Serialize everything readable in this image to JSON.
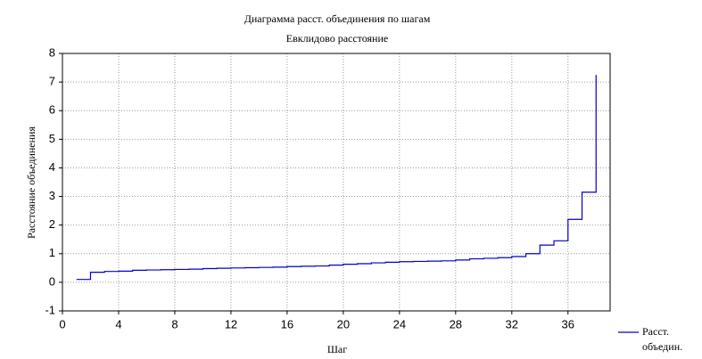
{
  "chart_data": {
    "type": "line",
    "drawstyle": "steps-post",
    "title": "Диаграмма расст. объединения по шагам",
    "subtitle": "Евклидово расстояние",
    "x_label": "Шаг",
    "y_label": "Расстояние объединения",
    "x": [
      1,
      2,
      3,
      4,
      5,
      6,
      7,
      8,
      9,
      10,
      11,
      12,
      13,
      14,
      15,
      16,
      17,
      18,
      19,
      20,
      21,
      22,
      23,
      24,
      25,
      26,
      27,
      28,
      29,
      30,
      31,
      32,
      33,
      34,
      35,
      36,
      37,
      38
    ],
    "series": [
      {
        "name": "Расст. объедин.",
        "color": "#0000cc",
        "values": [
          0.1,
          0.35,
          0.38,
          0.39,
          0.42,
          0.43,
          0.44,
          0.45,
          0.46,
          0.48,
          0.49,
          0.5,
          0.51,
          0.52,
          0.53,
          0.55,
          0.56,
          0.57,
          0.6,
          0.63,
          0.65,
          0.68,
          0.7,
          0.72,
          0.73,
          0.74,
          0.75,
          0.78,
          0.82,
          0.84,
          0.86,
          0.9,
          1.0,
          1.3,
          1.45,
          2.2,
          3.15,
          7.25
        ]
      }
    ],
    "xlim": [
      0,
      39
    ],
    "xticks": [
      0,
      4,
      8,
      12,
      16,
      20,
      24,
      28,
      32,
      36
    ],
    "ylim": [
      -1,
      8
    ],
    "yticks": [
      -1,
      0,
      1,
      2,
      3,
      4,
      5,
      6,
      7,
      8
    ],
    "grid": true,
    "legend": "lower right"
  }
}
